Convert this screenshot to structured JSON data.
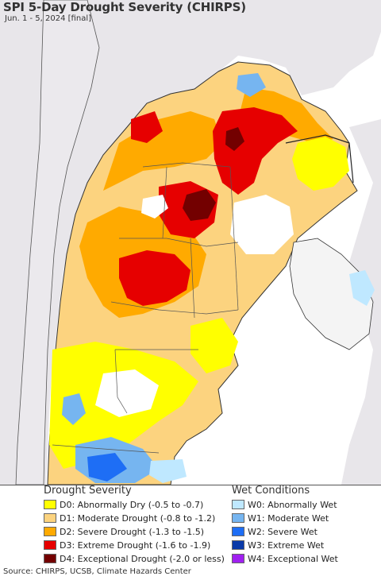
{
  "title": "SPI 5-Day Drought Severity (CHIRPS)",
  "subtitle": "Jun. 1 - 5, 2024 [final]",
  "legend_drought": {
    "title": "Drought Severity",
    "items": [
      {
        "label": "D0: Abnormally Dry (-0.5 to -0.7)",
        "color": "#ffff00"
      },
      {
        "label": "D1: Moderate Drought (-0.8 to -1.2)",
        "color": "#fcd37f"
      },
      {
        "label": "D2: Severe Drought (-1.3 to -1.5)",
        "color": "#ffaa00"
      },
      {
        "label": "D3: Extreme Drought (-1.6 to -1.9)",
        "color": "#e60000"
      },
      {
        "label": "D4: Exceptional Drought (-2.0 or less)",
        "color": "#730000"
      }
    ]
  },
  "legend_wet": {
    "title": "Wet Conditions",
    "items": [
      {
        "label": "W0: Abnormally Wet",
        "color": "#bfe8ff"
      },
      {
        "label": "W1: Moderate Wet",
        "color": "#76b5f0"
      },
      {
        "label": "W2: Severe Wet",
        "color": "#1e6ef5"
      },
      {
        "label": "W3: Extreme Wet",
        "color": "#0a3aa8"
      },
      {
        "label": "W4: Exceptional Wet",
        "color": "#a020f0"
      }
    ]
  },
  "source": "Source: CHIRPS, UCSB, Climate Hazards Center",
  "colors": {
    "ocean": "#ffffff",
    "outside_region": "#e8e6ea",
    "border": "#333333"
  }
}
